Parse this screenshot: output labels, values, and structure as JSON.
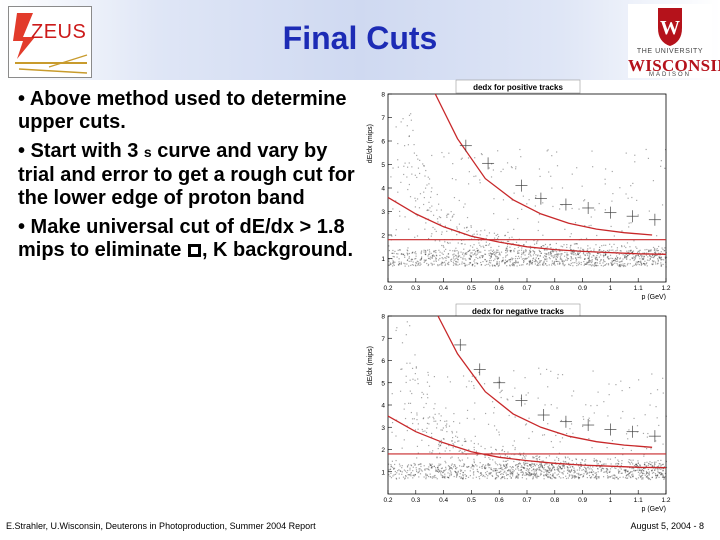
{
  "header": {
    "title": "Final Cuts",
    "zeus_logo_text": "ZEUS",
    "uw_logo": {
      "line1": "THE UNIVERSITY",
      "line2": "WISCONSIN",
      "line3": "MADISON",
      "crest_letter": "W"
    }
  },
  "bullets": [
    {
      "text": "• Above method used to determine upper cuts."
    },
    {
      "before": "• Start with 3 ",
      "symbol": "s",
      "after": " curve and vary by trial and error to get a rough cut for the lower edge of proton band"
    },
    {
      "before": "• Make universal cut of dE/dx > 1.8 mips to eliminate ",
      "after": ", K background."
    }
  ],
  "plots": [
    {
      "title": "dedx for positive tracks",
      "xlabel": "p (GeV)",
      "ylabel": "dE/dx (mips)",
      "xlim": [
        0.2,
        1.2
      ],
      "ylim": [
        0,
        8
      ],
      "xticks": [
        "0.2",
        "0.3",
        "0.4",
        "0.5",
        "0.6",
        "0.7",
        "0.8",
        "0.9",
        "1",
        "1.1",
        "1.2"
      ],
      "yticks": [
        "1",
        "2",
        "3",
        "4",
        "5",
        "6",
        "7",
        "8"
      ],
      "cut_level": 1.8,
      "upper_curve": [
        [
          0.37,
          8.0
        ],
        [
          0.45,
          6.1
        ],
        [
          0.55,
          4.4
        ],
        [
          0.65,
          3.5
        ],
        [
          0.75,
          2.9
        ],
        [
          0.85,
          2.5
        ],
        [
          0.95,
          2.25
        ],
        [
          1.05,
          2.1
        ],
        [
          1.15,
          2.0
        ]
      ],
      "lower_curve": [
        [
          0.2,
          3.6
        ],
        [
          0.3,
          2.9
        ],
        [
          0.4,
          2.35
        ],
        [
          0.5,
          1.95
        ],
        [
          0.6,
          1.7
        ],
        [
          0.7,
          1.5
        ],
        [
          0.8,
          1.38
        ],
        [
          0.9,
          1.3
        ],
        [
          1.0,
          1.25
        ],
        [
          1.1,
          1.2
        ],
        [
          1.2,
          1.18
        ]
      ],
      "marker_points": [
        [
          0.48,
          5.8
        ],
        [
          0.56,
          5.05
        ],
        [
          0.68,
          4.1
        ],
        [
          0.75,
          3.55
        ],
        [
          0.84,
          3.3
        ],
        [
          0.92,
          3.15
        ],
        [
          1.0,
          2.95
        ],
        [
          1.08,
          2.8
        ],
        [
          1.16,
          2.65
        ]
      ]
    },
    {
      "title": "dedx for negative tracks",
      "xlabel": "p (GeV)",
      "ylabel": "dE/dx (mips)",
      "xlim": [
        0.2,
        1.2
      ],
      "ylim": [
        0,
        8
      ],
      "xticks": [
        "0.2",
        "0.3",
        "0.4",
        "0.5",
        "0.6",
        "0.7",
        "0.8",
        "0.9",
        "1",
        "1.1",
        "1.2"
      ],
      "yticks": [
        "1",
        "2",
        "3",
        "4",
        "5",
        "6",
        "7",
        "8"
      ],
      "cut_level": 1.8,
      "upper_curve": [
        [
          0.38,
          8.0
        ],
        [
          0.45,
          6.3
        ],
        [
          0.55,
          4.6
        ],
        [
          0.65,
          3.6
        ],
        [
          0.75,
          3.0
        ],
        [
          0.85,
          2.6
        ],
        [
          0.95,
          2.35
        ],
        [
          1.05,
          2.2
        ],
        [
          1.15,
          2.1
        ]
      ],
      "lower_curve": [
        [
          0.2,
          3.5
        ],
        [
          0.3,
          2.8
        ],
        [
          0.4,
          2.3
        ],
        [
          0.5,
          1.9
        ],
        [
          0.6,
          1.65
        ],
        [
          0.7,
          1.5
        ],
        [
          0.8,
          1.38
        ],
        [
          0.9,
          1.3
        ],
        [
          1.0,
          1.25
        ],
        [
          1.1,
          1.2
        ],
        [
          1.2,
          1.18
        ]
      ],
      "marker_points": [
        [
          0.46,
          6.7
        ],
        [
          0.53,
          5.6
        ],
        [
          0.6,
          5.0
        ],
        [
          0.68,
          4.2
        ],
        [
          0.76,
          3.55
        ],
        [
          0.84,
          3.25
        ],
        [
          0.92,
          3.1
        ],
        [
          1.0,
          2.9
        ],
        [
          1.08,
          2.8
        ],
        [
          1.16,
          2.6
        ]
      ]
    }
  ],
  "footer": {
    "left": "E.Strahler, U.Wisconsin, Deuterons in Photoproduction, Summer 2004 Report",
    "right": "August 5, 2004 - 8"
  },
  "colors": {
    "title": "#1c2bb5",
    "curve": "#c8282a",
    "uw_red": "#b5121b"
  }
}
